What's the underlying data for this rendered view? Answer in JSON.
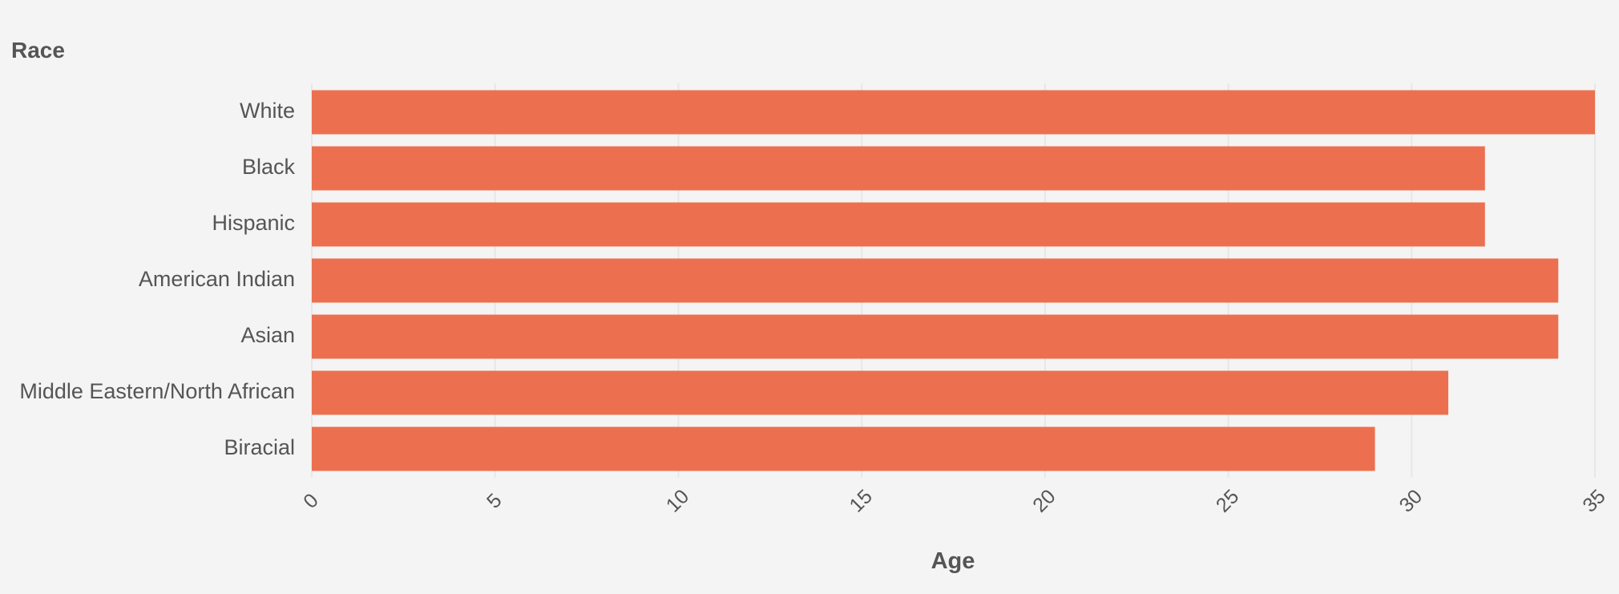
{
  "chart_data": {
    "type": "bar",
    "orientation": "horizontal",
    "ylabel": "Race",
    "xlabel": "Age",
    "categories": [
      "White",
      "Black",
      "Hispanic",
      "American Indian",
      "Asian",
      "Middle Eastern/North African",
      "Biracial"
    ],
    "values": [
      35,
      32,
      32,
      34,
      34,
      31,
      29
    ],
    "xlim": [
      0,
      35
    ],
    "xticks": [
      0,
      5,
      10,
      15,
      20,
      25,
      30,
      35
    ],
    "bar_color": "#ec7050",
    "grid": "vertical",
    "legend": "none"
  }
}
